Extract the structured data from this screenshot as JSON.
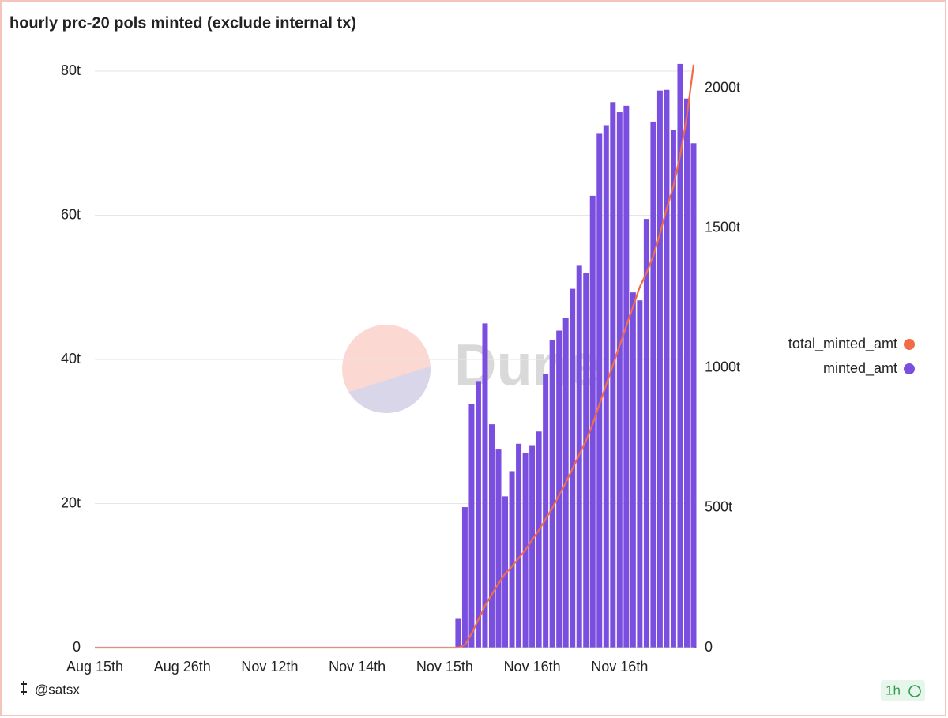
{
  "chart_data": {
    "type": "bar",
    "title": "hourly prc-20 pols minted (exclude internal tx)",
    "watermark": "Dune",
    "author": "@satsx",
    "refresh": "1h",
    "categories": [
      "Aug 15th",
      null,
      null,
      null,
      null,
      null,
      null,
      null,
      null,
      null,
      null,
      null,
      null,
      "Aug 26th",
      null,
      null,
      null,
      null,
      null,
      null,
      null,
      null,
      null,
      null,
      null,
      null,
      "Nov 12th",
      null,
      null,
      null,
      null,
      null,
      null,
      null,
      null,
      null,
      null,
      null,
      null,
      "Nov 14th",
      null,
      null,
      null,
      null,
      null,
      null,
      null,
      null,
      null,
      null,
      null,
      null,
      "Nov 15th",
      null,
      null,
      null,
      null,
      null,
      null,
      null,
      null,
      null,
      null,
      null,
      null,
      "Nov 16th",
      null,
      null,
      null,
      null,
      null,
      null,
      null,
      null,
      null,
      null,
      null,
      null,
      "Nov 16th",
      null,
      null,
      null,
      null,
      null,
      null,
      null,
      null,
      null,
      null,
      null
    ],
    "series": [
      {
        "name": "total_minted_amt",
        "color": "#f26b47",
        "type": "line",
        "axis": "y2",
        "values": [
          0,
          0,
          0,
          0,
          0,
          0,
          0,
          0,
          0,
          0,
          0,
          0,
          0,
          0,
          0,
          0,
          0,
          0,
          0,
          0,
          0,
          0,
          0,
          0,
          0,
          0,
          0,
          0,
          0,
          0,
          0,
          0,
          0,
          0,
          0,
          0,
          0,
          0,
          0,
          0,
          0,
          0,
          0,
          0,
          0,
          0,
          0,
          0,
          0,
          0,
          0,
          0,
          0,
          0,
          0,
          10,
          50,
          100,
          150,
          190,
          230,
          265,
          290,
          320,
          350,
          385,
          420,
          460,
          500,
          545,
          590,
          640,
          690,
          740,
          800,
          870,
          940,
          1010,
          1080,
          1150,
          1220,
          1290,
          1340,
          1400,
          1480,
          1570,
          1650,
          1760,
          1900,
          2085
        ]
      },
      {
        "name": "minted_amt",
        "color": "#7a4fe0",
        "type": "bar",
        "values": [
          null,
          null,
          null,
          null,
          null,
          null,
          null,
          null,
          null,
          null,
          null,
          null,
          null,
          null,
          null,
          null,
          null,
          null,
          null,
          null,
          null,
          null,
          null,
          null,
          null,
          null,
          null,
          null,
          null,
          null,
          null,
          null,
          null,
          null,
          null,
          null,
          null,
          null,
          null,
          null,
          null,
          null,
          null,
          null,
          null,
          null,
          null,
          null,
          null,
          null,
          null,
          null,
          null,
          null,
          4,
          19.5,
          33.8,
          37,
          45,
          31,
          27.5,
          21,
          24.5,
          28.3,
          27,
          28,
          30,
          38,
          42.7,
          44,
          45.8,
          49.8,
          53,
          52,
          62.7,
          71.3,
          72.5,
          75.7,
          74.3,
          75.2,
          49.3,
          48.2,
          59.5,
          73,
          77.3,
          77.4,
          71.8,
          81,
          76.2,
          70
        ]
      }
    ],
    "ylim": [
      0,
      81.1
    ],
    "yticks": [
      0,
      {
        "value": 20,
        "label": "20t"
      },
      {
        "value": 40,
        "label": "40t"
      },
      {
        "value": 60,
        "label": "60t"
      },
      {
        "value": 80,
        "label": "80t"
      }
    ],
    "y2lim": [
      0,
      2090
    ],
    "y2ticks": [
      0,
      {
        "value": 500,
        "label": "500t"
      },
      {
        "value": 1000,
        "label": "1000t"
      },
      {
        "value": 1500,
        "label": "1500t"
      },
      {
        "value": 2000,
        "label": "2000t"
      }
    ],
    "grid": true,
    "legend": "right"
  }
}
